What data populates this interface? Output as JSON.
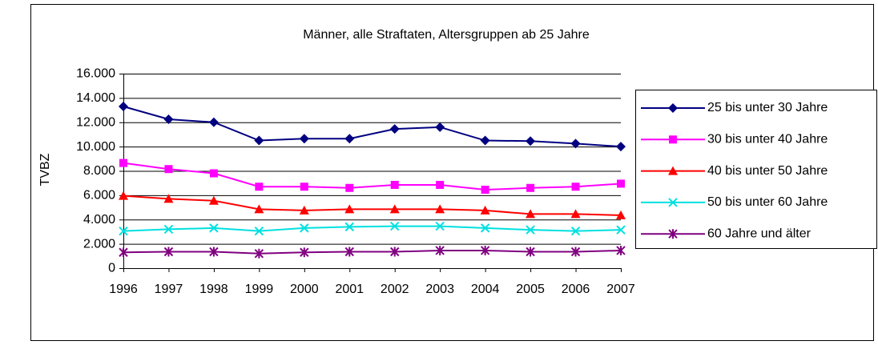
{
  "chart_data": {
    "type": "line",
    "title": "Männer, alle Straftaten, Altersgruppen ab 25 Jahre",
    "ylabel": "TVBZ",
    "categories": [
      "1996",
      "1997",
      "1998",
      "1999",
      "2000",
      "2001",
      "2002",
      "2003",
      "2004",
      "2005",
      "2006",
      "2007"
    ],
    "series": [
      {
        "name": "25 bis unter 30 Jahre",
        "color": "#000080",
        "marker": "diamond",
        "values": [
          13300,
          12250,
          12000,
          10500,
          10650,
          10650,
          11450,
          11600,
          10500,
          10450,
          10250,
          10000
        ]
      },
      {
        "name": "30 bis unter 40 Jahre",
        "color": "#ff00ff",
        "marker": "square",
        "values": [
          8650,
          8150,
          7800,
          6700,
          6700,
          6600,
          6850,
          6850,
          6450,
          6600,
          6700,
          6950
        ]
      },
      {
        "name": "40 bis unter 50 Jahre",
        "color": "#ff0000",
        "marker": "triangle",
        "values": [
          5950,
          5700,
          5550,
          4850,
          4750,
          4850,
          4850,
          4850,
          4750,
          4450,
          4450,
          4350
        ]
      },
      {
        "name": "50 bis unter 60 Jahre",
        "color": "#00e0e0",
        "marker": "x",
        "values": [
          3050,
          3200,
          3300,
          3050,
          3300,
          3400,
          3450,
          3450,
          3300,
          3150,
          3050,
          3150
        ]
      },
      {
        "name": "60 Jahre und älter",
        "color": "#800080",
        "marker": "star",
        "values": [
          1300,
          1350,
          1350,
          1200,
          1300,
          1350,
          1350,
          1450,
          1450,
          1350,
          1350,
          1450
        ]
      }
    ],
    "ylim": [
      0,
      16000
    ],
    "yticks": [
      0,
      {
        "value": 2000,
        "label": "2.000"
      },
      {
        "value": 4000,
        "label": "4.000"
      },
      {
        "value": 6000,
        "label": "6.000"
      },
      {
        "value": 8000,
        "label": "8.000"
      },
      {
        "value": 10000,
        "label": "10.000"
      },
      {
        "value": 12000,
        "label": "12.000"
      },
      {
        "value": 14000,
        "label": "14.000"
      },
      {
        "value": 16000,
        "label": "16.000"
      }
    ],
    "grid": true,
    "legend": "right"
  }
}
